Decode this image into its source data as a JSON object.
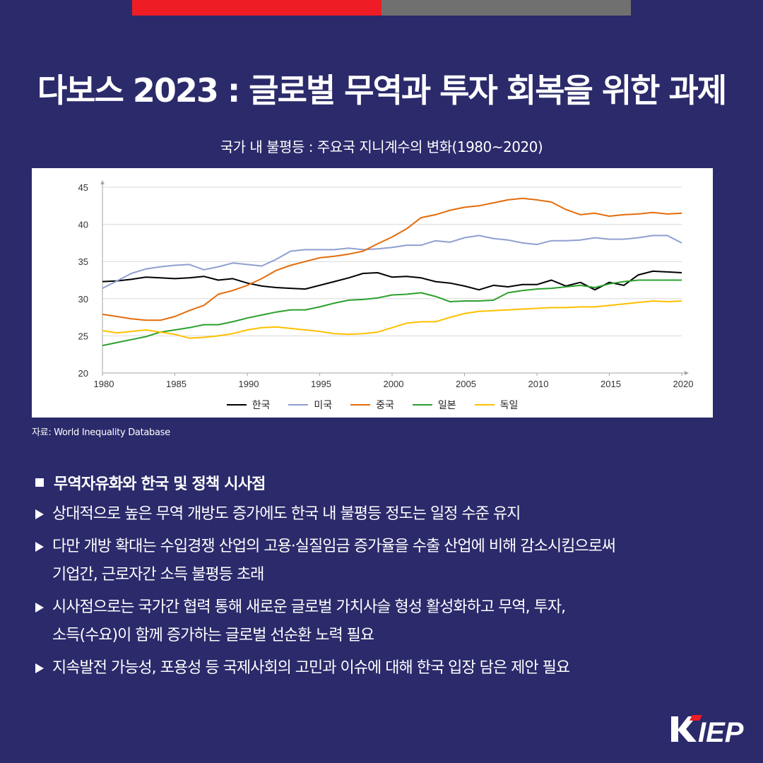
{
  "title": "다보스 2023 : 글로벌 무역과 투자 회복을 위한 과제",
  "chart_title": "국가 내 불평등 : 주요국 지니계수의 변화(1980~2020)",
  "source": "자료: World Inequality Database",
  "colors": {
    "background": "#2b2a6b",
    "accent_red": "#ee1c25",
    "accent_gray": "#707070"
  },
  "chart_data": {
    "type": "line",
    "title": "국가 내 불평등 : 주요국 지니계수의 변화(1980~2020)",
    "xlabel": "",
    "ylabel": "",
    "xlim": [
      1980,
      2020
    ],
    "ylim": [
      20,
      45
    ],
    "x_ticks": [
      1980,
      1985,
      1990,
      1995,
      2000,
      2005,
      2010,
      2015,
      2020
    ],
    "y_ticks": [
      20,
      25,
      30,
      35,
      40,
      45
    ],
    "grid": true,
    "legend_position": "bottom",
    "x": [
      1980,
      1981,
      1982,
      1983,
      1984,
      1985,
      1986,
      1987,
      1988,
      1989,
      1990,
      1991,
      1992,
      1993,
      1994,
      1995,
      1996,
      1997,
      1998,
      1999,
      2000,
      2001,
      2002,
      2003,
      2004,
      2005,
      2006,
      2007,
      2008,
      2009,
      2010,
      2011,
      2012,
      2013,
      2014,
      2015,
      2016,
      2017,
      2018,
      2019,
      2020
    ],
    "series": [
      {
        "name": "한국",
        "color": "#000000",
        "values": [
          32.3,
          32.4,
          32.6,
          32.9,
          32.8,
          32.7,
          32.8,
          33.0,
          32.5,
          32.7,
          32.1,
          31.7,
          31.5,
          31.4,
          31.3,
          31.8,
          32.3,
          32.8,
          33.4,
          33.5,
          32.9,
          33.0,
          32.8,
          32.3,
          32.1,
          31.7,
          31.2,
          31.8,
          31.6,
          31.9,
          31.9,
          32.5,
          31.7,
          32.2,
          31.2,
          32.2,
          31.8,
          33.2,
          33.7,
          33.6,
          33.5
        ]
      },
      {
        "name": "미국",
        "color": "#8f9fd0",
        "values": [
          31.4,
          32.4,
          33.4,
          34.0,
          34.3,
          34.5,
          34.6,
          33.9,
          34.3,
          34.8,
          34.6,
          34.4,
          35.3,
          36.4,
          36.6,
          36.6,
          36.6,
          36.8,
          36.6,
          36.7,
          36.9,
          37.2,
          37.2,
          37.8,
          37.6,
          38.2,
          38.5,
          38.1,
          37.9,
          37.5,
          37.3,
          37.8,
          37.8,
          37.9,
          38.2,
          38.0,
          38.0,
          38.2,
          38.5,
          38.5,
          37.5
        ]
      },
      {
        "name": "중국",
        "color": "#e46c0a",
        "values": [
          27.9,
          27.6,
          27.3,
          27.1,
          27.1,
          27.6,
          28.4,
          29.1,
          30.6,
          31.1,
          31.8,
          32.7,
          33.8,
          34.5,
          35.0,
          35.5,
          35.7,
          36.0,
          36.4,
          37.4,
          38.3,
          39.4,
          40.9,
          41.3,
          41.9,
          42.3,
          42.5,
          42.9,
          43.3,
          43.5,
          43.3,
          43.0,
          42.0,
          41.3,
          41.5,
          41.1,
          41.3,
          41.4,
          41.6,
          41.4,
          41.5
        ]
      },
      {
        "name": "일본",
        "color": "#2ca02c",
        "values": [
          23.7,
          24.1,
          24.5,
          24.9,
          25.5,
          25.8,
          26.1,
          26.5,
          26.5,
          26.9,
          27.4,
          27.8,
          28.2,
          28.5,
          28.5,
          28.9,
          29.4,
          29.8,
          29.9,
          30.1,
          30.5,
          30.6,
          30.8,
          30.3,
          29.6,
          29.7,
          29.7,
          29.8,
          30.8,
          31.1,
          31.3,
          31.4,
          31.6,
          31.8,
          31.5,
          32.0,
          32.3,
          32.5,
          32.5,
          32.5,
          32.5
        ]
      },
      {
        "name": "독일",
        "color": "#ffc000",
        "values": [
          25.7,
          25.4,
          25.6,
          25.8,
          25.5,
          25.2,
          24.7,
          24.8,
          25.0,
          25.3,
          25.8,
          26.1,
          26.2,
          26.0,
          25.8,
          25.6,
          25.3,
          25.2,
          25.3,
          25.5,
          26.1,
          26.7,
          26.9,
          26.9,
          27.5,
          28.0,
          28.3,
          28.4,
          28.5,
          28.6,
          28.7,
          28.8,
          28.8,
          28.9,
          28.9,
          29.1,
          29.3,
          29.5,
          29.7,
          29.6,
          29.7
        ]
      }
    ]
  },
  "section": {
    "heading": "무역자유화와 한국 및 정책 시사점",
    "bullets": [
      {
        "lines": [
          "상대적으로 높은 무역 개방도 증가에도 한국 내 불평등 정도는 일정 수준 유지"
        ]
      },
      {
        "lines": [
          "다만 개방 확대는 수입경쟁 산업의 고용·실질임금 증가율을 수출 산업에 비해 감소시킴으로써",
          "기업간, 근로자간 소득 불평등 초래"
        ]
      },
      {
        "lines": [
          "시사점으로는 국가간 협력 통해 새로운 글로벌 가치사슬 형성 활성화하고 무역, 투자,",
          "소득(수요)이 함께 증가하는 글로벌 선순환 노력 필요"
        ]
      },
      {
        "lines": [
          "지속발전 가능성, 포용성 등 국제사회의 고민과 이슈에 대해 한국 입장 담은 제안 필요"
        ]
      }
    ]
  },
  "logo": {
    "text": "KIEP",
    "icon": "kiep-logo"
  }
}
